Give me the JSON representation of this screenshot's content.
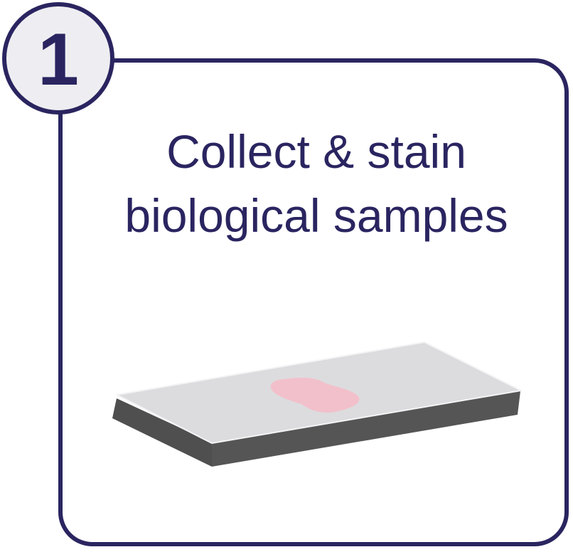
{
  "step": {
    "number": "1",
    "title_line1": "Collect & stain",
    "title_line2": "biological samples"
  },
  "colors": {
    "accent": "#2a2560",
    "badge_fill": "#eeeef2",
    "slide_top": "#dcdcde",
    "slide_edge": "#505050",
    "sample": "#f2c0cb"
  },
  "icons": [
    "microscope-slide-icon",
    "tissue-sample-icon"
  ]
}
